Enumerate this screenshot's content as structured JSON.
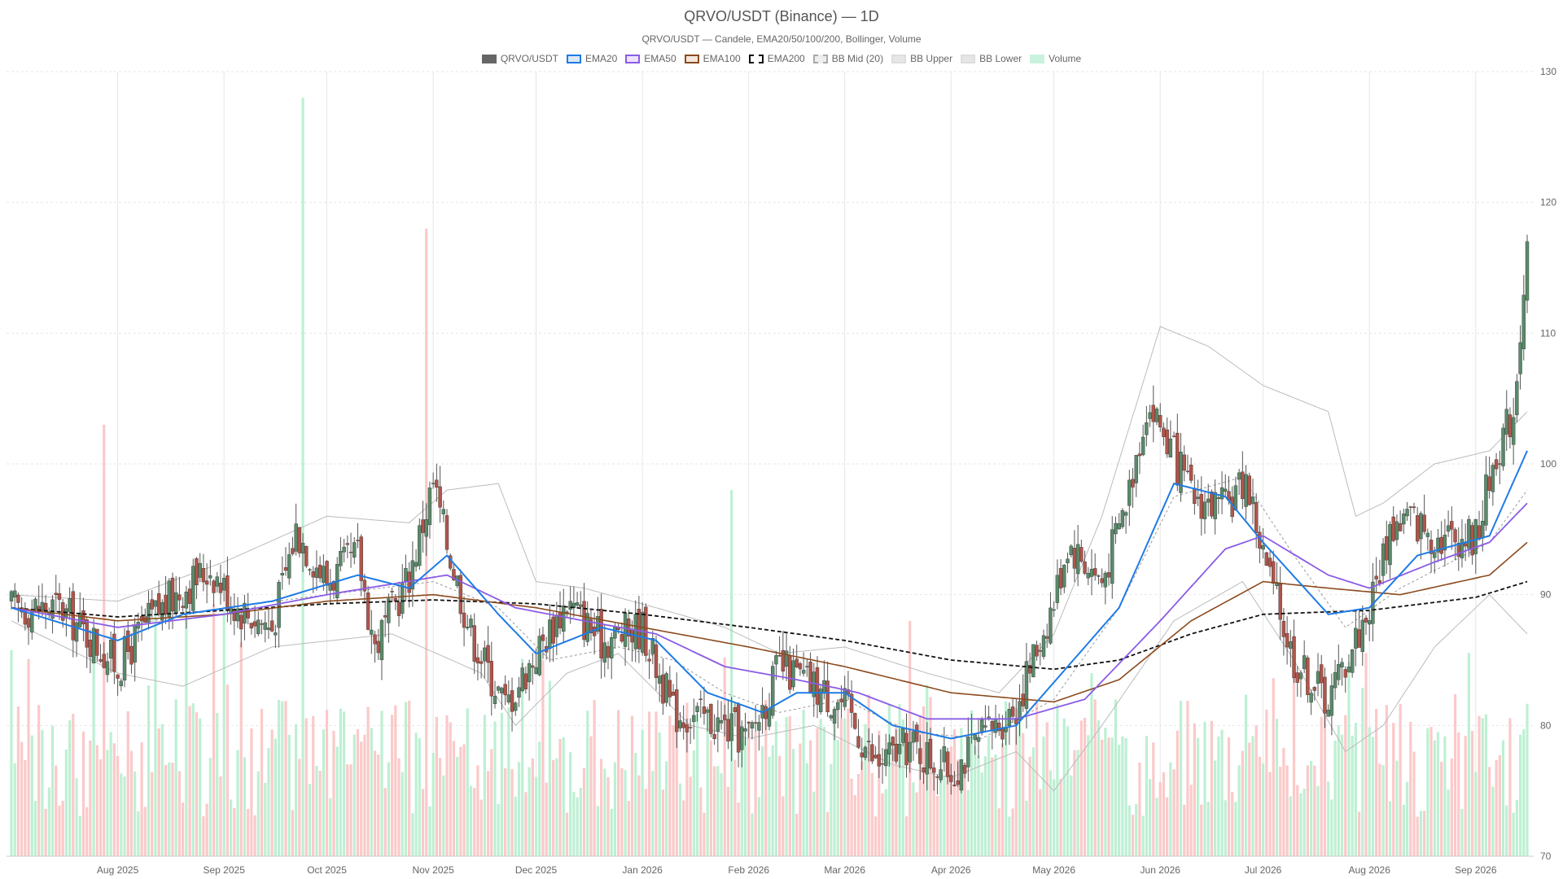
{
  "chart_data": {
    "type": "candlestick",
    "title": "QRVO/USDT (Binance) — 1D",
    "subtitle": "QRVO/USDT — Candele, EMA20/50/100/200, Bollinger, Volume",
    "legend_position": "top-center",
    "grid": true,
    "ylim": [
      70,
      130
    ],
    "y_ticks": [
      70,
      80,
      90,
      100,
      110,
      120,
      130
    ],
    "y_axis_side": "right",
    "x_range": [
      "2025-07-01",
      "2026-09-16"
    ],
    "x_ticks": [
      {
        "date": "2025-08-01",
        "label": "Aug 2025"
      },
      {
        "date": "2025-09-01",
        "label": "Sep 2025"
      },
      {
        "date": "2025-10-01",
        "label": "Oct 2025"
      },
      {
        "date": "2025-11-01",
        "label": "Nov 2025"
      },
      {
        "date": "2025-12-01",
        "label": "Dec 2025"
      },
      {
        "date": "2026-01-01",
        "label": "Jan 2026"
      },
      {
        "date": "2026-02-01",
        "label": "Feb 2026"
      },
      {
        "date": "2026-03-01",
        "label": "Mar 2026"
      },
      {
        "date": "2026-04-01",
        "label": "Apr 2026"
      },
      {
        "date": "2026-05-01",
        "label": "May 2026"
      },
      {
        "date": "2026-06-01",
        "label": "Jun 2026"
      },
      {
        "date": "2026-07-01",
        "label": "Jul 2026"
      },
      {
        "date": "2026-08-01",
        "label": "Aug 2026"
      },
      {
        "date": "2026-09-01",
        "label": "Sep 2026"
      }
    ],
    "legend": [
      {
        "label": "QRVO/USDT",
        "fill": "#666666",
        "border": "#666666",
        "dashed": false
      },
      {
        "label": "EMA20",
        "fill": "#dbe9fb",
        "border": "#1e7be6",
        "dashed": false
      },
      {
        "label": "EMA50",
        "fill": "#ece3fb",
        "border": "#8a5ce6",
        "dashed": false
      },
      {
        "label": "EMA100",
        "fill": "#f3e6dc",
        "border": "#8b4a1e",
        "dashed": false
      },
      {
        "label": "EMA200",
        "fill": "#ffffff",
        "border": "#111111",
        "dashed": true
      },
      {
        "label": "BB Mid (20)",
        "fill": "#eeeeee",
        "border": "#aaaaaa",
        "dashed": true
      },
      {
        "label": "BB Upper",
        "fill": "#e6e6e6",
        "border": "#dddddd",
        "dashed": false
      },
      {
        "label": "BB Lower",
        "fill": "#e6e6e6",
        "border": "#dddddd",
        "dashed": false
      },
      {
        "label": "Volume",
        "fill": "#c9f2dc",
        "border": "#c9f2dc",
        "dashed": false
      }
    ],
    "colors": {
      "up": "#5a8a6a",
      "down": "#b0554a",
      "wick": "#555555",
      "vol_up": "#bdf0d3",
      "vol_down": "#fbc9c9",
      "ema20": "#1e7be6",
      "ema50": "#8a5ce6",
      "ema100": "#8b4a1e",
      "ema200": "#111111",
      "bb_mid": "#999999",
      "bb_band": "#bbbbbb",
      "grid": "#e6e6e6"
    },
    "candle_anchors": [
      {
        "date": "2025-07-01",
        "close": 89.0
      },
      {
        "date": "2025-07-15",
        "close": 89.0
      },
      {
        "date": "2025-07-25",
        "close": 86.5
      },
      {
        "date": "2025-08-01",
        "close": 84.5
      },
      {
        "date": "2025-08-10",
        "close": 88.0
      },
      {
        "date": "2025-08-20",
        "close": 90.5
      },
      {
        "date": "2025-08-28",
        "close": 92.0
      },
      {
        "date": "2025-09-05",
        "close": 89.0
      },
      {
        "date": "2025-09-15",
        "close": 87.5
      },
      {
        "date": "2025-09-22",
        "close": 95.0
      },
      {
        "date": "2025-10-01",
        "close": 91.0
      },
      {
        "date": "2025-10-10",
        "close": 93.0
      },
      {
        "date": "2025-10-15",
        "close": 86.0
      },
      {
        "date": "2025-10-25",
        "close": 91.5
      },
      {
        "date": "2025-11-01",
        "close": 98.5
      },
      {
        "date": "2025-11-05",
        "close": 94.0
      },
      {
        "date": "2025-11-12",
        "close": 87.0
      },
      {
        "date": "2025-11-22",
        "close": 81.5
      },
      {
        "date": "2025-12-01",
        "close": 85.5
      },
      {
        "date": "2025-12-10",
        "close": 89.5
      },
      {
        "date": "2025-12-20",
        "close": 86.5
      },
      {
        "date": "2026-01-01",
        "close": 87.5
      },
      {
        "date": "2026-01-10",
        "close": 81.0
      },
      {
        "date": "2026-01-20",
        "close": 80.5
      },
      {
        "date": "2026-02-01",
        "close": 79.0
      },
      {
        "date": "2026-02-10",
        "close": 84.5
      },
      {
        "date": "2026-02-20",
        "close": 83.0
      },
      {
        "date": "2026-03-01",
        "close": 81.5
      },
      {
        "date": "2026-03-10",
        "close": 77.0
      },
      {
        "date": "2026-03-20",
        "close": 78.5
      },
      {
        "date": "2026-04-01",
        "close": 76.5
      },
      {
        "date": "2026-04-10",
        "close": 79.0
      },
      {
        "date": "2026-04-20",
        "close": 81.5
      },
      {
        "date": "2026-05-01",
        "close": 89.5
      },
      {
        "date": "2026-05-05",
        "close": 94.0
      },
      {
        "date": "2026-05-15",
        "close": 91.0
      },
      {
        "date": "2026-05-22",
        "close": 97.0
      },
      {
        "date": "2026-05-28",
        "close": 104.5
      },
      {
        "date": "2026-06-01",
        "close": 103.0
      },
      {
        "date": "2026-06-10",
        "close": 97.5
      },
      {
        "date": "2026-06-20",
        "close": 96.5
      },
      {
        "date": "2026-06-26",
        "close": 99.0
      },
      {
        "date": "2026-07-01",
        "close": 93.0
      },
      {
        "date": "2026-07-10",
        "close": 85.0
      },
      {
        "date": "2026-07-20",
        "close": 82.0
      },
      {
        "date": "2026-08-01",
        "close": 89.0
      },
      {
        "date": "2026-08-07",
        "close": 95.0
      },
      {
        "date": "2026-08-12",
        "close": 96.0
      },
      {
        "date": "2026-08-20",
        "close": 94.5
      },
      {
        "date": "2026-09-01",
        "close": 94.5
      },
      {
        "date": "2026-09-07",
        "close": 101.0
      },
      {
        "date": "2026-09-12",
        "close": 104.0
      },
      {
        "date": "2026-09-16",
        "close": 117.0
      }
    ],
    "ema20": [
      [
        "2025-07-01",
        89.0
      ],
      [
        "2025-08-01",
        86.5
      ],
      [
        "2025-08-20",
        88.5
      ],
      [
        "2025-09-15",
        89.5
      ],
      [
        "2025-10-10",
        91.5
      ],
      [
        "2025-10-25",
        90.5
      ],
      [
        "2025-11-05",
        93.0
      ],
      [
        "2025-11-20",
        88.5
      ],
      [
        "2025-12-01",
        85.5
      ],
      [
        "2025-12-20",
        87.5
      ],
      [
        "2026-01-05",
        86.5
      ],
      [
        "2026-01-20",
        82.5
      ],
      [
        "2026-02-05",
        81.0
      ],
      [
        "2026-02-15",
        82.5
      ],
      [
        "2026-03-01",
        82.5
      ],
      [
        "2026-03-15",
        80.0
      ],
      [
        "2026-04-01",
        79.0
      ],
      [
        "2026-04-20",
        80.0
      ],
      [
        "2026-05-05",
        84.5
      ],
      [
        "2026-05-20",
        89.0
      ],
      [
        "2026-06-05",
        98.5
      ],
      [
        "2026-06-20",
        97.5
      ],
      [
        "2026-07-01",
        94.0
      ],
      [
        "2026-07-20",
        88.5
      ],
      [
        "2026-08-01",
        89.0
      ],
      [
        "2026-08-15",
        93.0
      ],
      [
        "2026-09-05",
        94.5
      ],
      [
        "2026-09-16",
        101.0
      ]
    ],
    "ema50": [
      [
        "2025-07-01",
        89.0
      ],
      [
        "2025-08-01",
        87.5
      ],
      [
        "2025-09-01",
        88.5
      ],
      [
        "2025-10-01",
        90.0
      ],
      [
        "2025-11-05",
        91.5
      ],
      [
        "2025-11-25",
        89.0
      ],
      [
        "2025-12-15",
        88.0
      ],
      [
        "2026-01-05",
        87.0
      ],
      [
        "2026-01-25",
        84.5
      ],
      [
        "2026-02-15",
        83.5
      ],
      [
        "2026-03-05",
        82.5
      ],
      [
        "2026-03-25",
        80.5
      ],
      [
        "2026-04-20",
        80.5
      ],
      [
        "2026-05-10",
        82.0
      ],
      [
        "2026-06-01",
        88.0
      ],
      [
        "2026-06-20",
        93.5
      ],
      [
        "2026-07-01",
        94.5
      ],
      [
        "2026-07-20",
        91.5
      ],
      [
        "2026-08-01",
        90.5
      ],
      [
        "2026-08-20",
        92.5
      ],
      [
        "2026-09-05",
        94.0
      ],
      [
        "2026-09-16",
        97.0
      ]
    ],
    "ema100": [
      [
        "2025-07-01",
        89.0
      ],
      [
        "2025-08-01",
        88.0
      ],
      [
        "2025-09-01",
        88.5
      ],
      [
        "2025-10-01",
        89.5
      ],
      [
        "2025-11-01",
        90.0
      ],
      [
        "2025-12-01",
        89.0
      ],
      [
        "2026-01-01",
        87.5
      ],
      [
        "2026-02-01",
        86.0
      ],
      [
        "2026-03-01",
        84.5
      ],
      [
        "2026-04-01",
        82.5
      ],
      [
        "2026-05-01",
        81.8
      ],
      [
        "2026-05-20",
        83.5
      ],
      [
        "2026-06-10",
        88.0
      ],
      [
        "2026-07-01",
        91.0
      ],
      [
        "2026-07-20",
        90.5
      ],
      [
        "2026-08-10",
        90.0
      ],
      [
        "2026-09-05",
        91.5
      ],
      [
        "2026-09-16",
        94.0
      ]
    ],
    "ema200": [
      [
        "2025-07-01",
        89.0
      ],
      [
        "2025-08-01",
        88.3
      ],
      [
        "2025-09-01",
        88.8
      ],
      [
        "2025-10-01",
        89.3
      ],
      [
        "2025-11-01",
        89.6
      ],
      [
        "2025-12-01",
        89.3
      ],
      [
        "2026-01-01",
        88.5
      ],
      [
        "2026-02-01",
        87.5
      ],
      [
        "2026-03-01",
        86.5
      ],
      [
        "2026-04-01",
        85.0
      ],
      [
        "2026-05-01",
        84.3
      ],
      [
        "2026-05-20",
        85.0
      ],
      [
        "2026-06-10",
        87.0
      ],
      [
        "2026-07-01",
        88.5
      ],
      [
        "2026-08-01",
        88.8
      ],
      [
        "2026-09-01",
        89.8
      ],
      [
        "2026-09-16",
        91.0
      ]
    ],
    "bb_mid": [
      [
        "2025-07-01",
        89.0
      ],
      [
        "2025-08-01",
        87.5
      ],
      [
        "2025-09-01",
        89.0
      ],
      [
        "2025-10-01",
        90.0
      ],
      [
        "2025-11-01",
        91.0
      ],
      [
        "2025-11-20",
        89.0
      ],
      [
        "2025-12-05",
        85.0
      ],
      [
        "2025-12-25",
        86.0
      ],
      [
        "2026-01-10",
        85.0
      ],
      [
        "2026-01-25",
        82.5
      ],
      [
        "2026-02-10",
        81.0
      ],
      [
        "2026-03-01",
        82.0
      ],
      [
        "2026-03-20",
        79.5
      ],
      [
        "2026-04-10",
        79.0
      ],
      [
        "2026-05-01",
        82.0
      ],
      [
        "2026-05-20",
        89.0
      ],
      [
        "2026-06-05",
        97.5
      ],
      [
        "2026-06-25",
        99.0
      ],
      [
        "2026-07-10",
        93.0
      ],
      [
        "2026-07-25",
        87.5
      ],
      [
        "2026-08-10",
        90.5
      ],
      [
        "2026-09-05",
        94.0
      ],
      [
        "2026-09-16",
        98.0
      ]
    ],
    "bb_upper": [
      [
        "2025-07-01",
        90.0
      ],
      [
        "2025-08-01",
        89.5
      ],
      [
        "2025-09-01",
        92.5
      ],
      [
        "2025-10-01",
        96.0
      ],
      [
        "2025-10-25",
        95.5
      ],
      [
        "2025-11-05",
        98.0
      ],
      [
        "2025-11-20",
        98.5
      ],
      [
        "2025-12-01",
        91.0
      ],
      [
        "2025-12-15",
        90.5
      ],
      [
        "2026-01-05",
        89.0
      ],
      [
        "2026-01-25",
        87.5
      ],
      [
        "2026-02-10",
        85.5
      ],
      [
        "2026-03-01",
        86.0
      ],
      [
        "2026-03-25",
        84.0
      ],
      [
        "2026-04-15",
        82.5
      ],
      [
        "2026-05-01",
        87.0
      ],
      [
        "2026-05-15",
        96.0
      ],
      [
        "2026-06-01",
        110.5
      ],
      [
        "2026-06-15",
        109.0
      ],
      [
        "2026-07-01",
        106.0
      ],
      [
        "2026-07-20",
        104.0
      ],
      [
        "2026-07-28",
        96.0
      ],
      [
        "2026-08-05",
        97.0
      ],
      [
        "2026-08-20",
        100.0
      ],
      [
        "2026-09-05",
        101.0
      ],
      [
        "2026-09-16",
        104.0
      ]
    ],
    "bb_lower": [
      [
        "2025-07-01",
        88.0
      ],
      [
        "2025-08-01",
        84.0
      ],
      [
        "2025-08-20",
        83.0
      ],
      [
        "2025-09-15",
        86.0
      ],
      [
        "2025-10-20",
        87.0
      ],
      [
        "2025-11-15",
        84.0
      ],
      [
        "2025-11-25",
        80.0
      ],
      [
        "2025-12-10",
        84.0
      ],
      [
        "2025-12-25",
        85.5
      ],
      [
        "2026-01-15",
        80.0
      ],
      [
        "2026-02-01",
        79.0
      ],
      [
        "2026-02-20",
        80.0
      ],
      [
        "2026-03-15",
        77.0
      ],
      [
        "2026-04-01",
        76.0
      ],
      [
        "2026-04-20",
        78.0
      ],
      [
        "2026-05-01",
        75.0
      ],
      [
        "2026-05-15",
        80.0
      ],
      [
        "2026-06-05",
        88.0
      ],
      [
        "2026-06-25",
        91.0
      ],
      [
        "2026-07-10",
        85.0
      ],
      [
        "2026-07-25",
        78.0
      ],
      [
        "2026-08-05",
        80.0
      ],
      [
        "2026-08-20",
        86.0
      ],
      [
        "2026-09-05",
        90.0
      ],
      [
        "2026-09-16",
        87.0
      ]
    ],
    "volume_spikes": [
      {
        "date": "2025-09-24",
        "value": 58,
        "dir": "up"
      },
      {
        "date": "2025-10-30",
        "value": 48,
        "dir": "down"
      },
      {
        "date": "2025-07-28",
        "value": 33,
        "dir": "down"
      },
      {
        "date": "2026-01-27",
        "value": 28,
        "dir": "up"
      },
      {
        "date": "2026-03-20",
        "value": 18,
        "dir": "down"
      },
      {
        "date": "2026-05-12",
        "value": 14,
        "dir": "up"
      }
    ],
    "volume_scale_max": 60
  }
}
